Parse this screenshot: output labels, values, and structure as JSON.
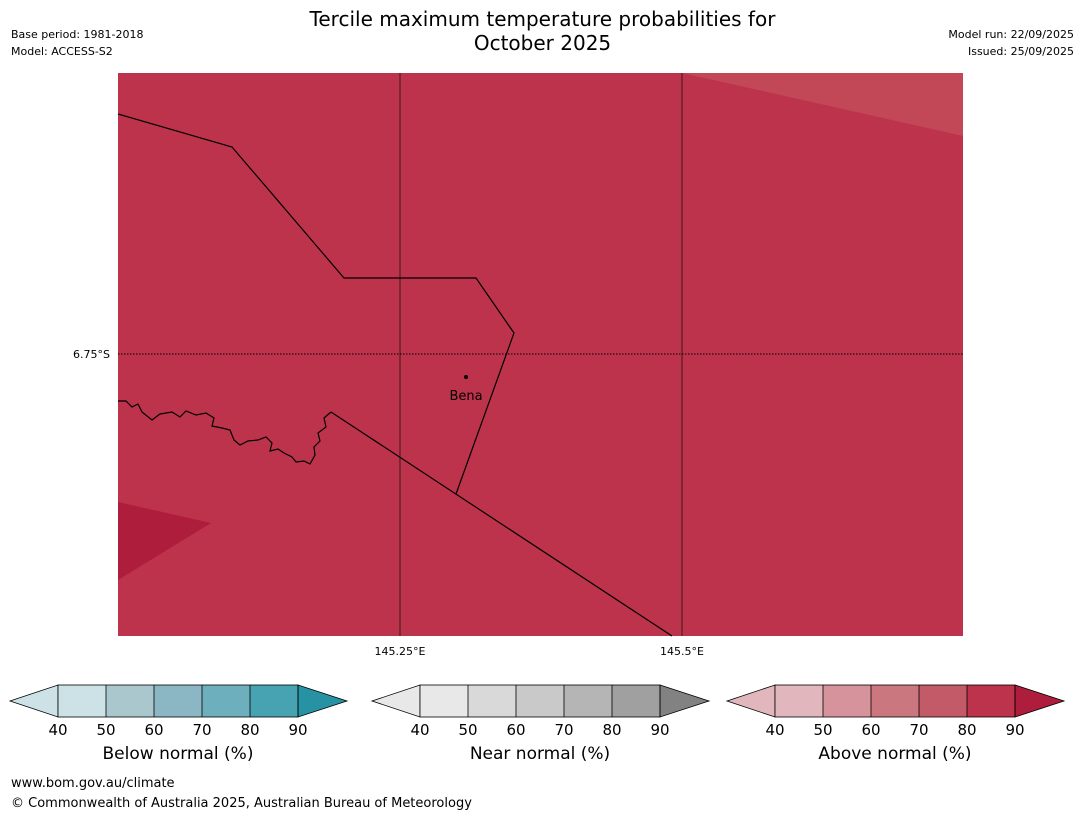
{
  "header": {
    "title_line1": "Tercile maximum temperature probabilities for",
    "title_line2": "October 2025",
    "base_period": "Base period: 1981-2018",
    "model": "Model: ACCESS-S2",
    "model_run": "Model run: 22/09/2025",
    "issued": "Issued: 25/09/2025"
  },
  "map": {
    "lat_label": "6.75°S",
    "lon_labels": [
      "145.25°E",
      "145.5°E"
    ],
    "place_name": "Bena",
    "fill_color": "#bd334b",
    "lighter_color": "#c24757",
    "darker_color": "#ae1e3c"
  },
  "colorbars": {
    "ticks": [
      "40",
      "50",
      "60",
      "70",
      "80",
      "90"
    ],
    "below": {
      "label": "Below normal (%)",
      "colors": [
        "#cce2e7",
        "#a9c7cd",
        "#8bb7c4",
        "#6eafbd",
        "#47a3b1",
        "#2792a4"
      ]
    },
    "near": {
      "label": "Near normal (%)",
      "colors": [
        "#e8e8e8",
        "#d9d9d9",
        "#c9c9c9",
        "#b5b5b5",
        "#a0a0a0",
        "#828282"
      ]
    },
    "above": {
      "label": "Above normal (%)",
      "colors": [
        "#e1b7bd",
        "#d6939c",
        "#cb7780",
        "#c35a67",
        "#bd334b",
        "#ae1e3c"
      ]
    }
  },
  "footer": {
    "website": "www.bom.gov.au/climate",
    "copyright": "© Commonwealth of Australia 2025, Australian Bureau of Meteorology"
  }
}
